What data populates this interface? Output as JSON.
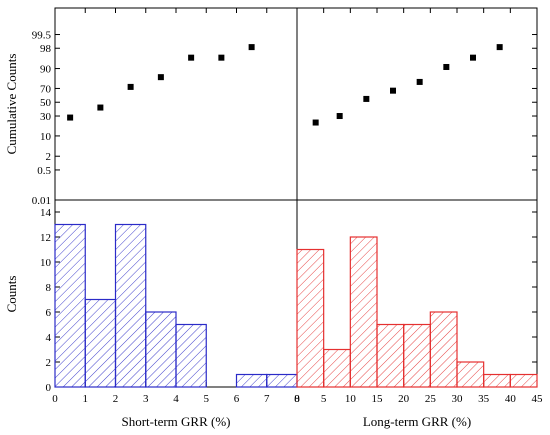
{
  "chart_data": [
    {
      "panel": "top-left",
      "type": "scatter",
      "ylabel": "Cumulative Counts",
      "y_scale": "probability",
      "yticks": [
        "0.01",
        "0.5",
        "2",
        "10",
        "30",
        "50",
        "70",
        "90",
        "98",
        "99.5"
      ],
      "xlim": [
        0,
        8
      ],
      "points": [
        {
          "x": 0.5,
          "y": 28
        },
        {
          "x": 1.5,
          "y": 42
        },
        {
          "x": 2.5,
          "y": 72
        },
        {
          "x": 3.5,
          "y": 83
        },
        {
          "x": 4.5,
          "y": 95.5
        },
        {
          "x": 5.5,
          "y": 95.5
        },
        {
          "x": 6.5,
          "y": 98.2
        }
      ],
      "marker_color": "#000000"
    },
    {
      "panel": "top-right",
      "type": "scatter",
      "y_scale": "probability",
      "xlim": [
        0,
        45
      ],
      "points": [
        {
          "x": 3.5,
          "y": 22
        },
        {
          "x": 8,
          "y": 30
        },
        {
          "x": 13,
          "y": 55
        },
        {
          "x": 18,
          "y": 67
        },
        {
          "x": 23,
          "y": 78
        },
        {
          "x": 28,
          "y": 91
        },
        {
          "x": 33,
          "y": 95.5
        },
        {
          "x": 38,
          "y": 98.2
        }
      ],
      "marker_color": "#000000"
    },
    {
      "panel": "bottom-left",
      "type": "bar",
      "xlabel": "Short-term GRR (%)",
      "ylabel": "Counts",
      "xlim": [
        0,
        8
      ],
      "ylim": [
        0,
        14
      ],
      "xticks": [
        0,
        1,
        2,
        3,
        4,
        5,
        6,
        7,
        8
      ],
      "yticks": [
        0,
        2,
        4,
        6,
        8,
        10,
        12,
        14
      ],
      "bin_width": 1,
      "bins": [
        {
          "x0": 0,
          "count": 13
        },
        {
          "x0": 1,
          "count": 7
        },
        {
          "x0": 2,
          "count": 13
        },
        {
          "x0": 3,
          "count": 6
        },
        {
          "x0": 4,
          "count": 5
        },
        {
          "x0": 5,
          "count": 0
        },
        {
          "x0": 6,
          "count": 1
        },
        {
          "x0": 7,
          "count": 1
        }
      ],
      "color": "#2b2bc8",
      "fill": "hatched"
    },
    {
      "panel": "bottom-right",
      "type": "bar",
      "xlabel": "Long-term GRR (%)",
      "xlim": [
        0,
        45
      ],
      "ylim": [
        0,
        14
      ],
      "xticks": [
        0,
        5,
        10,
        15,
        20,
        25,
        30,
        35,
        40,
        45
      ],
      "bin_width": 5,
      "bins": [
        {
          "x0": 0,
          "count": 11
        },
        {
          "x0": 5,
          "count": 3
        },
        {
          "x0": 10,
          "count": 12
        },
        {
          "x0": 15,
          "count": 5
        },
        {
          "x0": 20,
          "count": 5
        },
        {
          "x0": 25,
          "count": 6
        },
        {
          "x0": 30,
          "count": 2
        },
        {
          "x0": 35,
          "count": 1
        },
        {
          "x0": 40,
          "count": 1
        }
      ],
      "color": "#e53030",
      "fill": "hatched"
    }
  ]
}
